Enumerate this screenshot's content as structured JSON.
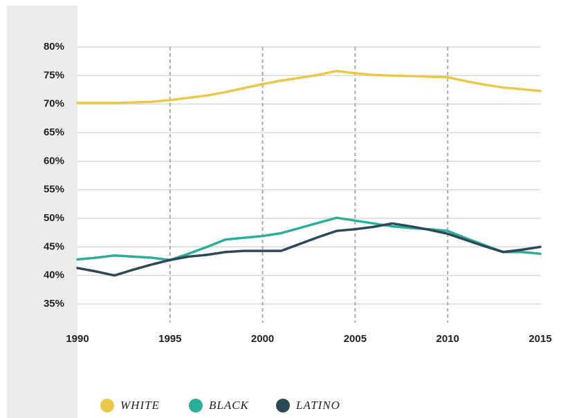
{
  "chart_data": {
    "type": "line",
    "x": [
      1990,
      1991,
      1992,
      1993,
      1994,
      1995,
      1996,
      1997,
      1998,
      1999,
      2000,
      2001,
      2002,
      2003,
      2004,
      2005,
      2006,
      2007,
      2008,
      2009,
      2010,
      2011,
      2012,
      2013,
      2014,
      2015
    ],
    "series": [
      {
        "name": "WHITE",
        "color": "#e9c84a",
        "values": [
          70.2,
          70.2,
          70.2,
          70.3,
          70.4,
          70.7,
          71.1,
          71.5,
          72.1,
          72.8,
          73.5,
          74.1,
          74.6,
          75.1,
          75.8,
          75.4,
          75.1,
          75.0,
          74.9,
          74.8,
          74.7,
          74.0,
          73.4,
          72.9,
          72.6,
          72.3
        ]
      },
      {
        "name": "BLACK",
        "color": "#2bae9a",
        "values": [
          42.8,
          43.1,
          43.5,
          43.3,
          43.1,
          42.7,
          43.8,
          45.0,
          46.3,
          46.6,
          46.9,
          47.4,
          48.3,
          49.2,
          50.1,
          49.6,
          49.1,
          48.6,
          48.3,
          48.1,
          47.8,
          46.5,
          45.3,
          44.1,
          44.1,
          43.8
        ]
      },
      {
        "name": "LATINO",
        "color": "#2f4858",
        "values": [
          41.3,
          40.7,
          40.0,
          41.0,
          41.9,
          42.7,
          43.3,
          43.6,
          44.1,
          44.3,
          44.3,
          44.3,
          45.5,
          46.7,
          47.8,
          48.1,
          48.5,
          49.1,
          48.6,
          48.0,
          47.3,
          46.2,
          45.1,
          44.1,
          44.5,
          45.0
        ]
      }
    ],
    "xlim": [
      1990,
      2015
    ],
    "xticks": [
      1990,
      1995,
      2000,
      2005,
      2010,
      2015
    ],
    "ylim": [
      35,
      80
    ],
    "yticks": [
      {
        "value": 35,
        "label": "35%"
      },
      {
        "value": 40,
        "label": "40%"
      },
      {
        "value": 45,
        "label": "45%"
      },
      {
        "value": 50,
        "label": "50%"
      },
      {
        "value": 55,
        "label": "55%"
      },
      {
        "value": 60,
        "label": "60%"
      },
      {
        "value": 65,
        "label": "65%"
      },
      {
        "value": 70,
        "label": "70%"
      },
      {
        "value": 75,
        "label": "75%"
      },
      {
        "value": 80,
        "label": "80%"
      }
    ],
    "grid": true,
    "legend": "bottom"
  }
}
